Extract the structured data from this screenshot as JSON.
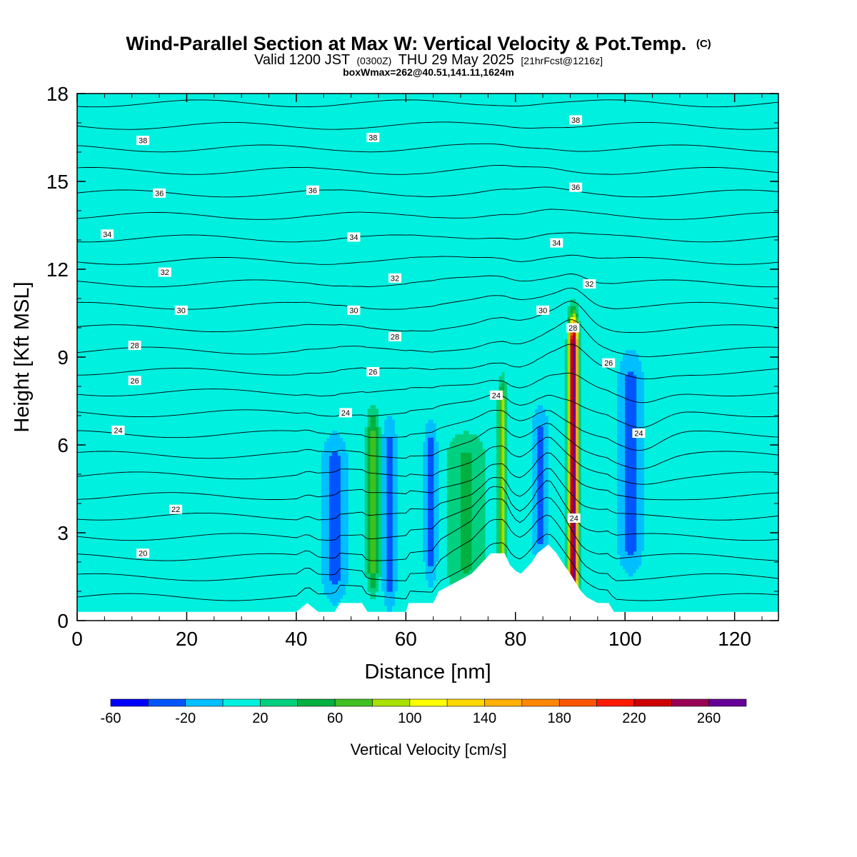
{
  "header": {
    "title": "Wind-Parallel Section at Max W: Vertical Velocity & Pot.Temp.",
    "title_mark": "(C)",
    "valid_a": "Valid 1200 JST",
    "valid_zone": "(0300Z)",
    "valid_b": "THU 29 May 2025",
    "valid_fcst": "[21hrFcst@1216z]",
    "box_info": "boxWmax=262@40.51,141.11,1624m"
  },
  "chart_data": {
    "type": "heatmap",
    "xlabel": "Distance [nm]",
    "ylabel": "Height [Kft MSL]",
    "xlim": [
      0,
      128
    ],
    "ylim": [
      0,
      18
    ],
    "x_ticks": [
      0,
      20,
      40,
      60,
      80,
      100,
      120
    ],
    "y_ticks": [
      0,
      3,
      6,
      9,
      12,
      15,
      18
    ],
    "colorbar": {
      "label": "Vertical Velocity [cm/s]",
      "levels": [
        -60,
        -40,
        -20,
        0,
        20,
        40,
        60,
        80,
        100,
        120,
        140,
        160,
        180,
        200,
        220,
        240,
        260,
        280
      ],
      "tick_labels": [
        -60,
        -20,
        20,
        60,
        100,
        140,
        180,
        220,
        260
      ],
      "colors": [
        "#0000ff",
        "#0055ff",
        "#00bfff",
        "#00f0e0",
        "#00d080",
        "#00b040",
        "#40c020",
        "#a8e000",
        "#ffff00",
        "#ffd800",
        "#ffb000",
        "#ff8800",
        "#ff5500",
        "#ff1a00",
        "#cc0000",
        "#990055",
        "#660099"
      ]
    },
    "background_value": 5,
    "updrafts": [
      {
        "x": 1.5,
        "z0": 9.6,
        "z1": 12.4,
        "w": 1.0,
        "v": 14
      },
      {
        "x": 11,
        "z0": 10.5,
        "z1": 17.2,
        "w": 2.4,
        "v": 14
      },
      {
        "x": 20,
        "z0": 0.5,
        "z1": 17.5,
        "w": 1.6,
        "v": 13
      },
      {
        "x": 27,
        "z0": 1.0,
        "z1": 17.8,
        "w": 1.4,
        "v": 13
      },
      {
        "x": 33,
        "z0": 10.0,
        "z1": 17.6,
        "w": 2.8,
        "v": 15
      },
      {
        "x": 42,
        "z0": 9.0,
        "z1": 17.8,
        "w": 2.6,
        "v": 14
      },
      {
        "x": 53,
        "z0": 9.0,
        "z1": 16.0,
        "w": 2.5,
        "v": 14
      },
      {
        "x": 58,
        "z0": 8.0,
        "z1": 16.5,
        "w": 1.6,
        "v": 13
      },
      {
        "x": 62,
        "z0": 9.0,
        "z1": 13.0,
        "w": 2.0,
        "v": 14
      },
      {
        "x": 68,
        "z0": 7.5,
        "z1": 16.5,
        "w": 2.2,
        "v": 14
      },
      {
        "x": 76,
        "z0": 12.0,
        "z1": 17.5,
        "w": 3.2,
        "v": 15
      },
      {
        "x": 87,
        "z0": 10.0,
        "z1": 15.0,
        "w": 2.5,
        "v": 14
      },
      {
        "x": 113,
        "z0": 10.5,
        "z1": 13.5,
        "w": 6.0,
        "v": 15
      },
      {
        "x": 54,
        "z0": 1.8,
        "z1": 6.4,
        "w": 1.1,
        "v": 64
      },
      {
        "x": 71,
        "z0": 1.8,
        "z1": 5.6,
        "w": 3.6,
        "v": 42
      },
      {
        "x": 77.6,
        "z0": 2.0,
        "z1": 7.3,
        "w": 0.65,
        "v": 100
      },
      {
        "x": 90.6,
        "z0": 1.5,
        "z1": 9.5,
        "w": 0.8,
        "v": 270
      },
      {
        "x": 110,
        "z0": 0.6,
        "z1": 8.5,
        "w": 9.0,
        "v": 15
      },
      {
        "x": 124,
        "z0": 0.5,
        "z1": 8.5,
        "w": 5.0,
        "v": 14
      }
    ],
    "downdrafts": [
      {
        "x": 47,
        "z0": 1.8,
        "z1": 5.2,
        "w": 1.8,
        "v": -30
      },
      {
        "x": 57,
        "z0": 1.5,
        "z1": 5.8,
        "w": 1.0,
        "v": -30
      },
      {
        "x": 64.5,
        "z0": 2.5,
        "z1": 5.6,
        "w": 0.9,
        "v": -42
      },
      {
        "x": 84.5,
        "z0": 3.0,
        "z1": 6.2,
        "w": 1.2,
        "v": -28
      },
      {
        "x": 101,
        "z0": 2.8,
        "z1": 8.0,
        "w": 1.8,
        "v": -30
      }
    ],
    "terrain": [
      [
        0,
        0.3
      ],
      [
        40,
        0.3
      ],
      [
        42,
        0.6
      ],
      [
        44,
        0.3
      ],
      [
        47,
        0.3
      ],
      [
        48,
        0.6
      ],
      [
        52,
        0.6
      ],
      [
        53,
        0.3
      ],
      [
        60,
        0.3
      ],
      [
        60.5,
        0.6
      ],
      [
        65,
        0.6
      ],
      [
        66,
        1.0
      ],
      [
        69,
        1.3
      ],
      [
        72,
        1.6
      ],
      [
        74,
        2.0
      ],
      [
        75.5,
        2.3
      ],
      [
        78,
        2.3
      ],
      [
        79,
        1.9
      ],
      [
        80,
        1.7
      ],
      [
        81,
        1.6
      ],
      [
        83,
        2.0
      ],
      [
        84,
        2.3
      ],
      [
        86,
        2.6
      ],
      [
        87.5,
        2.3
      ],
      [
        88.5,
        2.0
      ],
      [
        90,
        1.6
      ],
      [
        91,
        1.3
      ],
      [
        92,
        1.0
      ],
      [
        93,
        0.8
      ],
      [
        95,
        0.6
      ],
      [
        97,
        0.6
      ],
      [
        98,
        0.3
      ],
      [
        128,
        0.3
      ]
    ],
    "contour_labels": [
      {
        "x": 12,
        "y": 16.4,
        "value": "38"
      },
      {
        "x": 54,
        "y": 16.5,
        "value": "38"
      },
      {
        "x": 91,
        "y": 17.1,
        "value": "38"
      },
      {
        "x": 15,
        "y": 14.6,
        "value": "36"
      },
      {
        "x": 43,
        "y": 14.7,
        "value": "36"
      },
      {
        "x": 91,
        "y": 14.8,
        "value": "36"
      },
      {
        "x": 5.5,
        "y": 13.2,
        "value": "34"
      },
      {
        "x": 50.5,
        "y": 13.1,
        "value": "34"
      },
      {
        "x": 87.5,
        "y": 12.9,
        "value": "34"
      },
      {
        "x": 16,
        "y": 11.9,
        "value": "32"
      },
      {
        "x": 58,
        "y": 11.7,
        "value": "32"
      },
      {
        "x": 93.5,
        "y": 11.5,
        "value": "32"
      },
      {
        "x": 19,
        "y": 10.6,
        "value": "30"
      },
      {
        "x": 50.5,
        "y": 10.6,
        "value": "30"
      },
      {
        "x": 85,
        "y": 10.6,
        "value": "30"
      },
      {
        "x": 10.5,
        "y": 9.4,
        "value": "28"
      },
      {
        "x": 58,
        "y": 9.7,
        "value": "28"
      },
      {
        "x": 90.5,
        "y": 10.0,
        "value": "28"
      },
      {
        "x": 10.5,
        "y": 8.2,
        "value": "26"
      },
      {
        "x": 54,
        "y": 8.5,
        "value": "26"
      },
      {
        "x": 97,
        "y": 8.8,
        "value": "26"
      },
      {
        "x": 7.5,
        "y": 6.5,
        "value": "24"
      },
      {
        "x": 49,
        "y": 7.1,
        "value": "24"
      },
      {
        "x": 76.5,
        "y": 7.7,
        "value": "24"
      },
      {
        "x": 102.5,
        "y": 6.4,
        "value": "24"
      },
      {
        "x": 90.7,
        "y": 3.5,
        "value": "24"
      },
      {
        "x": 18,
        "y": 3.8,
        "value": "22"
      },
      {
        "x": 12,
        "y": 2.3,
        "value": "20"
      }
    ]
  }
}
